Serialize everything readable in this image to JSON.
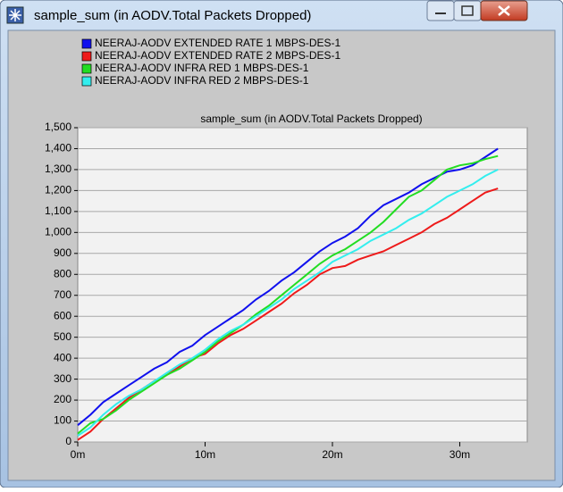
{
  "window": {
    "title": "sample_sum (in AODV.Total Packets Dropped)"
  },
  "chart_data": {
    "type": "line",
    "title": "sample_sum (in AODV.Total Packets Dropped)",
    "x": [
      0,
      1,
      2,
      3,
      4,
      5,
      6,
      7,
      8,
      9,
      10,
      11,
      12,
      13,
      14,
      15,
      16,
      17,
      18,
      19,
      20,
      21,
      22,
      23,
      24,
      25,
      26,
      27,
      28,
      29,
      30,
      31,
      32,
      33
    ],
    "series": [
      {
        "name": "NEERAJ-AODV EXTENDED RATE  1 MBPS-DES-1",
        "color": "#1010ee",
        "values": [
          80,
          130,
          190,
          230,
          270,
          310,
          350,
          380,
          430,
          460,
          510,
          550,
          590,
          630,
          680,
          720,
          770,
          810,
          860,
          910,
          950,
          980,
          1020,
          1080,
          1130,
          1160,
          1190,
          1230,
          1260,
          1290,
          1300,
          1320,
          1360,
          1400
        ]
      },
      {
        "name": "NEERAJ-AODV EXTENDED RATE  2 MBPS-DES-1",
        "color": "#ee1a1a",
        "values": [
          10,
          50,
          110,
          160,
          210,
          250,
          290,
          320,
          360,
          400,
          420,
          470,
          510,
          540,
          580,
          620,
          660,
          710,
          750,
          800,
          830,
          840,
          870,
          890,
          910,
          940,
          970,
          1000,
          1040,
          1070,
          1110,
          1150,
          1190,
          1210
        ]
      },
      {
        "name": "NEERAJ-AODV INFRA RED 1 MBPS-DES-1",
        "color": "#22dd22",
        "values": [
          40,
          90,
          110,
          150,
          200,
          240,
          280,
          320,
          350,
          390,
          430,
          480,
          520,
          560,
          610,
          650,
          700,
          750,
          800,
          850,
          890,
          920,
          960,
          1000,
          1050,
          1110,
          1170,
          1200,
          1250,
          1300,
          1320,
          1330,
          1350,
          1365
        ]
      },
      {
        "name": "NEERAJ-AODV INFRA RED 2 MBPS-DES-1",
        "color": "#33eeee",
        "values": [
          30,
          70,
          130,
          180,
          220,
          250,
          290,
          330,
          370,
          400,
          440,
          490,
          530,
          560,
          600,
          640,
          680,
          730,
          770,
          810,
          860,
          890,
          920,
          960,
          990,
          1020,
          1060,
          1090,
          1130,
          1170,
          1200,
          1230,
          1270,
          1300
        ]
      }
    ],
    "xlim": [
      0,
      35.3
    ],
    "xticks": [
      {
        "value": 0,
        "label": "0m"
      },
      {
        "value": 10,
        "label": "10m"
      },
      {
        "value": 20,
        "label": "20m"
      },
      {
        "value": 30,
        "label": "30m"
      }
    ],
    "ylim": [
      0,
      1500
    ],
    "yticks": [
      0,
      100,
      200,
      300,
      400,
      500,
      600,
      700,
      800,
      900,
      {
        "value": 1000,
        "label": "1,000"
      },
      {
        "value": 1100,
        "label": "1,100"
      },
      {
        "value": 1200,
        "label": "1,200"
      },
      {
        "value": 1300,
        "label": "1,300"
      },
      {
        "value": 1400,
        "label": "1,400"
      },
      {
        "value": 1500,
        "label": "1,500"
      }
    ],
    "grid": true,
    "legend": "top-left"
  }
}
